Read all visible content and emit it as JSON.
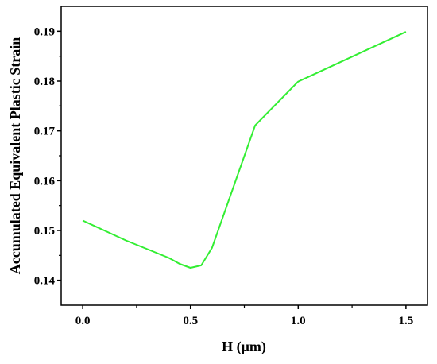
{
  "chart_data": {
    "type": "line",
    "title": "",
    "xlabel": "H (μm)",
    "ylabel": "Accumulated Equivalent Plastic Strain",
    "xlim": [
      -0.1,
      1.6
    ],
    "ylim": [
      0.135,
      0.195
    ],
    "xticks": [
      0.0,
      0.5,
      1.0,
      1.5
    ],
    "xtick_labels": [
      "0.0",
      "0.5",
      "1.0",
      "1.5"
    ],
    "yticks": [
      0.14,
      0.15,
      0.16,
      0.17,
      0.18,
      0.19
    ],
    "ytick_labels": [
      "0.14",
      "0.15",
      "0.16",
      "0.17",
      "0.18",
      "0.19"
    ],
    "grid": false,
    "legend": "none",
    "series": [
      {
        "color": "#33ee33",
        "x": [
          0.0,
          0.2,
          0.4,
          0.45,
          0.5,
          0.55,
          0.6,
          0.8,
          1.0,
          1.5
        ],
        "y": [
          0.152,
          0.148,
          0.1445,
          0.1433,
          0.1425,
          0.143,
          0.1465,
          0.1711,
          0.1799,
          0.1899
        ]
      }
    ]
  }
}
